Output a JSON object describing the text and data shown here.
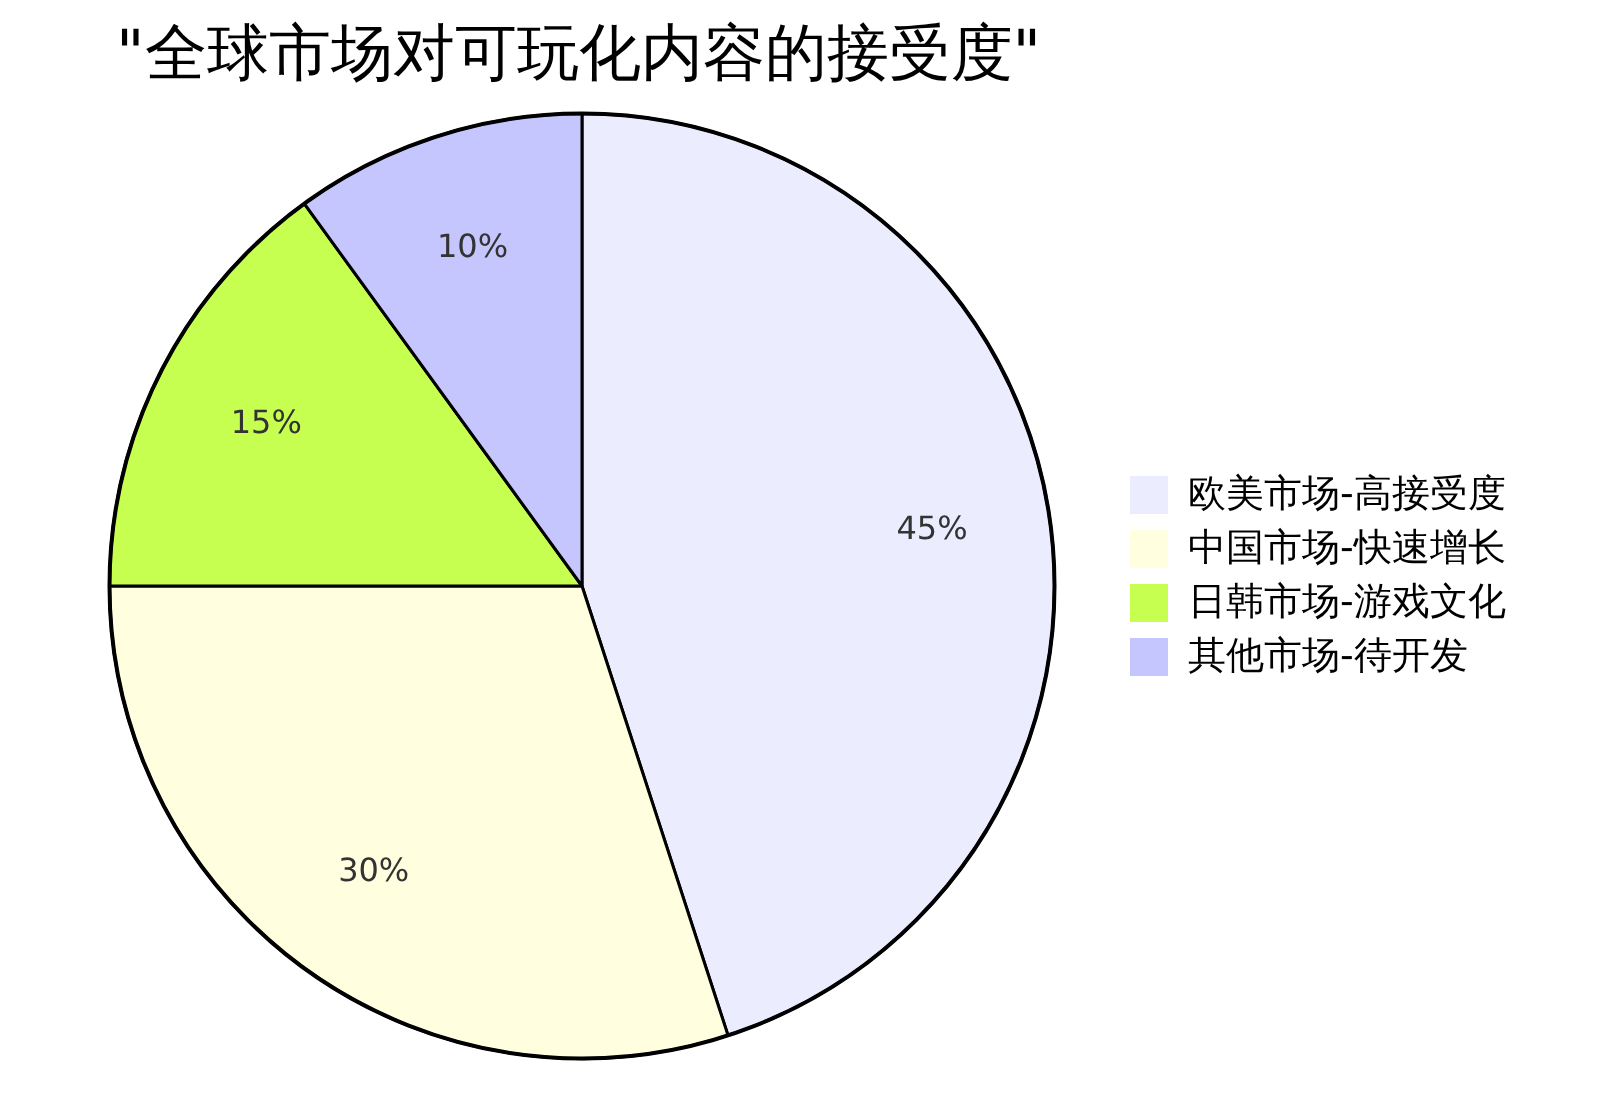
{
  "chart_data": {
    "type": "pie",
    "title": "\"全球市场对可玩化内容的接受度\"",
    "categories": [
      "欧美市场-高接受度",
      "中国市场-快速增长",
      "日韩市场-游戏文化",
      "其他市场-待开发"
    ],
    "values": [
      45,
      30,
      15,
      10
    ],
    "colors": [
      "#ececff",
      "#ffffe0",
      "#c6ff50",
      "#c6c6ff"
    ],
    "value_labels": [
      "45%",
      "30%",
      "15%",
      "10%"
    ],
    "legend": "right"
  }
}
